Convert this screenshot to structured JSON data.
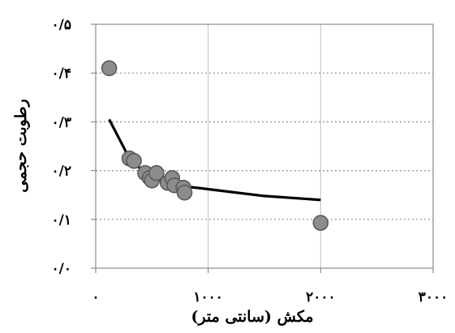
{
  "chart_data": {
    "type": "scatter",
    "title": "",
    "xlabel": "مکش (سانتی متر)",
    "ylabel": "رطوبت حجمی",
    "xlim": [
      0,
      3000
    ],
    "ylim": [
      0,
      0.5
    ],
    "x_ticks": [
      0,
      1000,
      2000,
      3000
    ],
    "y_ticks": [
      0,
      0.1,
      0.2,
      0.3,
      0.4,
      0.5
    ],
    "x_tick_labels": [
      "۰",
      "۱۰۰۰",
      "۲۰۰۰",
      "۳۰۰۰"
    ],
    "y_tick_labels": [
      "۰/۰",
      "۰/۱",
      "۰/۲",
      "۰/۳",
      "۰/۴",
      "۰/۵"
    ],
    "x_grid": true,
    "y_grid": true,
    "legend": "none",
    "colors": {
      "marker_fill": "#8c8c8c",
      "marker_edge": "#5a5a5a",
      "fit_line": "#000000",
      "grid_x": "#c0c0c0",
      "grid_y": "#8c8c8c",
      "frame": "#8c8c8c"
    },
    "series": [
      {
        "kind": "points",
        "x": [
          120,
          300,
          340,
          440,
          480,
          500,
          540,
          640,
          680,
          700,
          780,
          790,
          2000
        ],
        "y": [
          0.41,
          0.225,
          0.22,
          0.195,
          0.185,
          0.18,
          0.195,
          0.175,
          0.185,
          0.17,
          0.165,
          0.155,
          0.093
        ]
      },
      {
        "kind": "line",
        "x": [
          120,
          300,
          340,
          440,
          480,
          540,
          640,
          700,
          780,
          1000,
          1500,
          2000
        ],
        "y": [
          0.305,
          0.225,
          0.215,
          0.196,
          0.19,
          0.182,
          0.175,
          0.172,
          0.168,
          0.162,
          0.148,
          0.14
        ]
      }
    ]
  }
}
